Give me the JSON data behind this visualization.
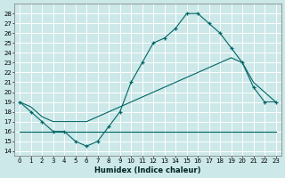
{
  "bg_color": "#cce8e8",
  "grid_color": "#b0d8d8",
  "line_color": "#006666",
  "xlabel": "Humidex (Indice chaleur)",
  "xlim": [
    -0.5,
    23.5
  ],
  "ylim": [
    13.5,
    29
  ],
  "yticks": [
    14,
    15,
    16,
    17,
    18,
    19,
    20,
    21,
    22,
    23,
    24,
    25,
    26,
    27,
    28
  ],
  "xticks": [
    0,
    1,
    2,
    3,
    4,
    5,
    6,
    7,
    8,
    9,
    10,
    11,
    12,
    13,
    14,
    15,
    16,
    17,
    18,
    19,
    20,
    21,
    22,
    23
  ],
  "line1_x": [
    0,
    1,
    2,
    3,
    4,
    5,
    6,
    7,
    8,
    9,
    10,
    11,
    12,
    13,
    14,
    15,
    16,
    17,
    18,
    19,
    20,
    21,
    22,
    23
  ],
  "line1_y": [
    19,
    18,
    17,
    16,
    16,
    15,
    14.5,
    15,
    16.5,
    18,
    21,
    23,
    25,
    25.5,
    26.5,
    28,
    28,
    27,
    26,
    24.5,
    23,
    20.5,
    19,
    19
  ],
  "line2_x": [
    0,
    1,
    2,
    3,
    4,
    5,
    6,
    7,
    8,
    9,
    10,
    11,
    12,
    13,
    14,
    15,
    16,
    17,
    18,
    19,
    20,
    21,
    22,
    23
  ],
  "line2_y": [
    19,
    18.5,
    17.5,
    17,
    17,
    17,
    17,
    17.5,
    18,
    18.5,
    19,
    19.5,
    20,
    20.5,
    21,
    21.5,
    22,
    22.5,
    23,
    23.5,
    23,
    21,
    20,
    19
  ],
  "line3_x": [
    0,
    4,
    15,
    23
  ],
  "line3_y": [
    16,
    16,
    16,
    16
  ]
}
